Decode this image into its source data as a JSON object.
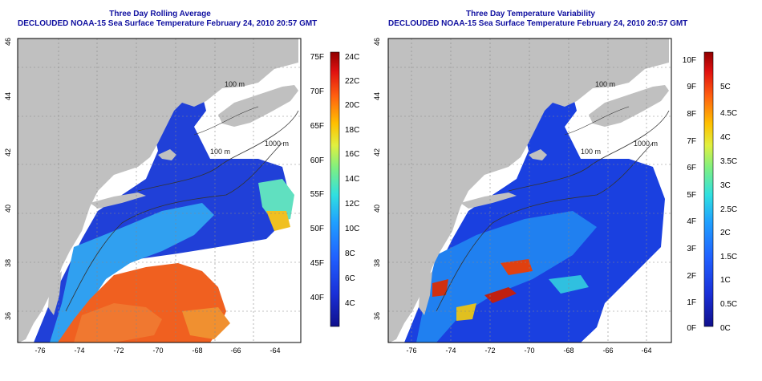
{
  "left": {
    "title_line1": "Three Day Rolling Average",
    "title_line2": "DECLOUDED NOAA-15 Sea Surface Temperature February 24, 2010 20:57 GMT",
    "x_ticks": [
      "-76",
      "-74",
      "-72",
      "-70",
      "-68",
      "-66",
      "-64"
    ],
    "y_ticks": [
      "36",
      "38",
      "40",
      "42",
      "44",
      "46"
    ],
    "contour_labels": [
      "100 m",
      "100 m",
      "1000 m"
    ],
    "colorbar_f": [
      "75F",
      "70F",
      "65F",
      "60F",
      "55F",
      "50F",
      "45F",
      "40F"
    ],
    "colorbar_c": [
      "24C",
      "22C",
      "20C",
      "18C",
      "16C",
      "14C",
      "12C",
      "10C",
      "8C",
      "6C",
      "4C"
    ]
  },
  "right": {
    "title_line1": "Three Day Temperature Variability",
    "title_line2": "DECLOUDED NOAA-15 Sea Surface Temperature February 24, 2010 20:57 GMT",
    "x_ticks": [
      "-76",
      "-74",
      "-72",
      "-70",
      "-68",
      "-66",
      "-64"
    ],
    "y_ticks": [
      "36",
      "38",
      "40",
      "42",
      "44",
      "46"
    ],
    "contour_labels": [
      "100 m",
      "100 m",
      "1000 m"
    ],
    "colorbar_f": [
      "10F",
      "9F",
      "8F",
      "7F",
      "6F",
      "5F",
      "4F",
      "3F",
      "2F",
      "1F",
      "0F"
    ],
    "colorbar_c": [
      "5C",
      "4.5C",
      "4C",
      "3.5C",
      "3C",
      "2.5C",
      "2C",
      "1.5C",
      "1C",
      "0.5C",
      "0C"
    ]
  },
  "colors": {
    "title": "#1010a0",
    "land": "#c0c0c0",
    "axis_text": "#000000"
  }
}
